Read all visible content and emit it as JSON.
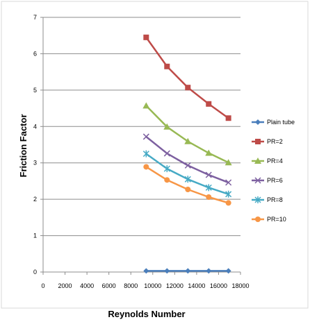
{
  "chart_data": {
    "type": "line",
    "title": "",
    "xlabel": "Reynolds Number",
    "ylabel": "Friction Factor",
    "xlim": [
      0,
      18000
    ],
    "ylim": [
      0,
      7
    ],
    "xticks": [
      0,
      2000,
      4000,
      6000,
      8000,
      10000,
      12000,
      14000,
      16000,
      18000
    ],
    "yticks": [
      0,
      1,
      2,
      3,
      4,
      5,
      6,
      7
    ],
    "grid": "horizontal",
    "legend": "right",
    "x": [
      9400,
      11300,
      13200,
      15100,
      16900
    ],
    "series": [
      {
        "name": "Plain tube",
        "color": "#4A7EBB",
        "marker": "diamond",
        "values": [
          0.03,
          0.03,
          0.03,
          0.03,
          0.03
        ]
      },
      {
        "name": "PR=2",
        "color": "#BE4B48",
        "marker": "square",
        "values": [
          6.45,
          5.65,
          5.07,
          4.62,
          4.23
        ]
      },
      {
        "name": "PR=4",
        "color": "#98B954",
        "marker": "triangle",
        "values": [
          4.57,
          3.99,
          3.59,
          3.27,
          3.01
        ]
      },
      {
        "name": "PR=6",
        "color": "#7D60A0",
        "marker": "x",
        "values": [
          3.72,
          3.26,
          2.93,
          2.67,
          2.46
        ]
      },
      {
        "name": "PR=8",
        "color": "#46AAC5",
        "marker": "star",
        "values": [
          3.25,
          2.84,
          2.55,
          2.32,
          2.14
        ]
      },
      {
        "name": "PR=10",
        "color": "#F79646",
        "marker": "circle",
        "values": [
          2.89,
          2.53,
          2.27,
          2.06,
          1.9
        ]
      }
    ]
  }
}
